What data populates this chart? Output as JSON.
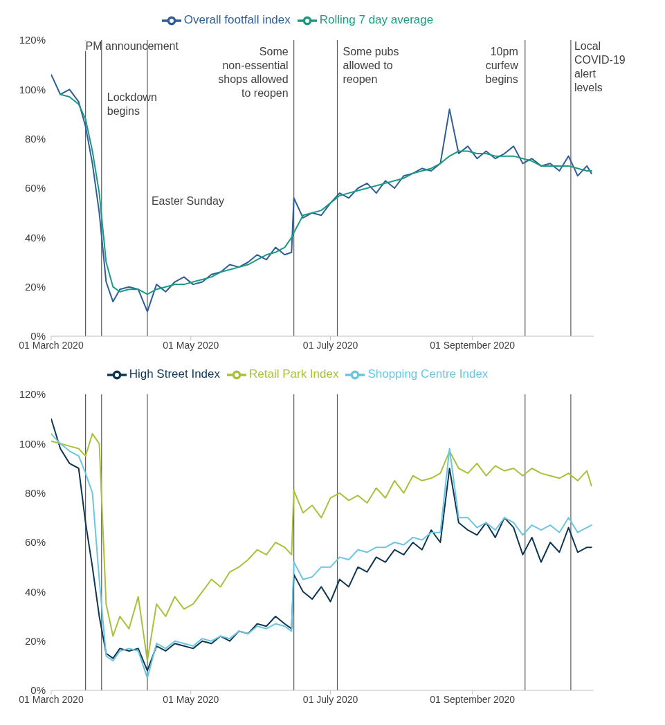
{
  "chart_data": [
    {
      "type": "line",
      "legend": "top",
      "marker": "none",
      "line_style": "solid",
      "x": [
        "2020-03-01",
        "2020-03-05",
        "2020-03-09",
        "2020-03-13",
        "2020-03-16",
        "2020-03-19",
        "2020-03-22",
        "2020-03-25",
        "2020-03-28",
        "2020-03-31",
        "2020-04-04",
        "2020-04-08",
        "2020-04-12",
        "2020-04-16",
        "2020-04-20",
        "2020-04-24",
        "2020-04-28",
        "2020-05-02",
        "2020-05-06",
        "2020-05-10",
        "2020-05-14",
        "2020-05-18",
        "2020-05-22",
        "2020-05-26",
        "2020-05-30",
        "2020-06-03",
        "2020-06-07",
        "2020-06-11",
        "2020-06-14",
        "2020-06-15",
        "2020-06-19",
        "2020-06-23",
        "2020-06-27",
        "2020-07-01",
        "2020-07-05",
        "2020-07-09",
        "2020-07-13",
        "2020-07-17",
        "2020-07-21",
        "2020-07-25",
        "2020-07-29",
        "2020-08-02",
        "2020-08-06",
        "2020-08-10",
        "2020-08-14",
        "2020-08-18",
        "2020-08-22",
        "2020-08-26",
        "2020-08-30",
        "2020-09-03",
        "2020-09-07",
        "2020-09-11",
        "2020-09-15",
        "2020-09-19",
        "2020-09-23",
        "2020-09-27",
        "2020-10-01",
        "2020-10-05",
        "2020-10-09",
        "2020-10-13",
        "2020-10-17",
        "2020-10-21",
        "2020-10-23"
      ],
      "series": [
        {
          "name": "Overall footfall index",
          "color": "#2f5d95",
          "values": [
            106,
            98,
            100,
            95,
            85,
            70,
            50,
            22,
            14,
            19,
            20,
            19,
            10,
            21,
            18,
            22,
            24,
            21,
            22,
            25,
            26,
            29,
            28,
            30,
            33,
            31,
            36,
            33,
            34,
            56,
            48,
            50,
            49,
            54,
            58,
            56,
            60,
            62,
            58,
            63,
            60,
            65,
            66,
            68,
            67,
            70,
            92,
            74,
            77,
            72,
            75,
            72,
            74,
            77,
            70,
            72,
            69,
            70,
            67,
            73,
            65,
            69,
            66
          ]
        },
        {
          "name": "Rolling 7 day average",
          "color": "#1a9a80",
          "values": [
            null,
            98,
            97,
            94,
            88,
            75,
            58,
            30,
            20,
            18,
            19,
            19,
            17,
            19,
            20,
            21,
            21,
            22,
            23,
            24,
            26,
            27,
            28,
            29,
            31,
            33,
            34,
            36,
            40,
            42,
            49,
            50,
            51,
            54,
            57,
            58,
            59,
            60,
            61,
            62,
            63,
            64,
            66,
            67,
            68,
            70,
            73,
            75,
            75,
            74,
            74,
            73,
            73,
            73,
            72,
            71,
            69,
            69,
            69,
            69,
            68,
            67,
            67
          ]
        }
      ],
      "xlim": [
        "2020-03-01",
        "2020-10-24"
      ],
      "xticks": [
        {
          "value": "2020-03-01",
          "label": "01 March 2020"
        },
        {
          "value": "2020-05-01",
          "label": "01 May 2020"
        },
        {
          "value": "2020-07-01",
          "label": "01 July 2020"
        },
        {
          "value": "2020-09-01",
          "label": "01 September 2020"
        }
      ],
      "ylim": [
        0,
        120
      ],
      "yticks": [
        {
          "value": 0,
          "label": "0%"
        },
        {
          "value": 20,
          "label": "20%"
        },
        {
          "value": 40,
          "label": "40%"
        },
        {
          "value": 60,
          "label": "60%"
        },
        {
          "value": 80,
          "label": "80%"
        },
        {
          "value": 100,
          "label": "100%"
        },
        {
          "value": 120,
          "label": "120%"
        }
      ],
      "ref_lines": [
        {
          "axis": "x",
          "value": "2020-03-16",
          "label": "PM announcement",
          "color": "#595959"
        },
        {
          "axis": "x",
          "value": "2020-03-23",
          "label": "Lockdown begins",
          "color": "#595959"
        },
        {
          "axis": "x",
          "value": "2020-04-12",
          "label": "Easter Sunday",
          "color": "#595959"
        },
        {
          "axis": "x",
          "value": "2020-06-15",
          "label": "Some non-essential shops allowed to reopen",
          "color": "#595959"
        },
        {
          "axis": "x",
          "value": "2020-07-04",
          "label": "Some pubs allowed to reopen",
          "color": "#595959"
        },
        {
          "axis": "x",
          "value": "2020-09-24",
          "label": "10pm curfew begins",
          "color": "#595959"
        },
        {
          "axis": "x",
          "value": "2020-10-14",
          "label": "Local COVID-19 alert levels",
          "color": "#595959"
        }
      ]
    },
    {
      "type": "line",
      "legend": "top",
      "marker": "none",
      "line_style": "solid",
      "x": [
        "2020-03-01",
        "2020-03-05",
        "2020-03-09",
        "2020-03-13",
        "2020-03-16",
        "2020-03-19",
        "2020-03-22",
        "2020-03-25",
        "2020-03-28",
        "2020-03-31",
        "2020-04-04",
        "2020-04-08",
        "2020-04-12",
        "2020-04-16",
        "2020-04-20",
        "2020-04-24",
        "2020-04-28",
        "2020-05-02",
        "2020-05-06",
        "2020-05-10",
        "2020-05-14",
        "2020-05-18",
        "2020-05-22",
        "2020-05-26",
        "2020-05-30",
        "2020-06-03",
        "2020-06-07",
        "2020-06-11",
        "2020-06-14",
        "2020-06-15",
        "2020-06-19",
        "2020-06-23",
        "2020-06-27",
        "2020-07-01",
        "2020-07-05",
        "2020-07-09",
        "2020-07-13",
        "2020-07-17",
        "2020-07-21",
        "2020-07-25",
        "2020-07-29",
        "2020-08-02",
        "2020-08-06",
        "2020-08-10",
        "2020-08-14",
        "2020-08-18",
        "2020-08-22",
        "2020-08-26",
        "2020-08-30",
        "2020-09-03",
        "2020-09-07",
        "2020-09-11",
        "2020-09-15",
        "2020-09-19",
        "2020-09-23",
        "2020-09-27",
        "2020-10-01",
        "2020-10-05",
        "2020-10-09",
        "2020-10-13",
        "2020-10-17",
        "2020-10-21",
        "2020-10-23"
      ],
      "series": [
        {
          "name": "High Street Index",
          "color": "#0e3653",
          "values": [
            110,
            98,
            92,
            90,
            68,
            50,
            30,
            15,
            13,
            17,
            16,
            17,
            8,
            18,
            16,
            19,
            18,
            17,
            20,
            19,
            22,
            20,
            24,
            23,
            27,
            26,
            30,
            27,
            25,
            47,
            40,
            37,
            42,
            36,
            45,
            42,
            50,
            48,
            54,
            52,
            57,
            55,
            60,
            57,
            65,
            60,
            90,
            68,
            65,
            63,
            68,
            62,
            70,
            66,
            55,
            62,
            52,
            60,
            56,
            66,
            56,
            58,
            58
          ]
        },
        {
          "name": "Retail Park Index",
          "color": "#a5c23a",
          "values": [
            101,
            100,
            99,
            98,
            95,
            104,
            100,
            35,
            22,
            30,
            25,
            38,
            12,
            35,
            30,
            38,
            33,
            35,
            40,
            45,
            42,
            48,
            50,
            53,
            57,
            55,
            60,
            58,
            55,
            81,
            72,
            75,
            70,
            78,
            80,
            77,
            79,
            76,
            82,
            78,
            85,
            80,
            87,
            85,
            86,
            88,
            97,
            90,
            88,
            92,
            87,
            91,
            89,
            90,
            87,
            90,
            88,
            87,
            86,
            88,
            85,
            89,
            83
          ]
        },
        {
          "name": "Shopping Centre Index",
          "color": "#6cc5e0",
          "values": [
            104,
            100,
            97,
            95,
            88,
            80,
            45,
            14,
            12,
            16,
            17,
            16,
            5,
            19,
            17,
            20,
            19,
            18,
            21,
            20,
            22,
            21,
            24,
            23,
            26,
            25,
            27,
            26,
            24,
            52,
            45,
            46,
            50,
            50,
            54,
            53,
            57,
            56,
            58,
            58,
            60,
            59,
            62,
            61,
            64,
            64,
            98,
            70,
            70,
            66,
            68,
            65,
            70,
            68,
            63,
            67,
            65,
            67,
            64,
            70,
            64,
            66,
            67
          ]
        }
      ],
      "xlim": [
        "2020-03-01",
        "2020-10-24"
      ],
      "xticks": [
        {
          "value": "2020-03-01",
          "label": "01 March 2020"
        },
        {
          "value": "2020-05-01",
          "label": "01 May 2020"
        },
        {
          "value": "2020-07-01",
          "label": "01 July 2020"
        },
        {
          "value": "2020-09-01",
          "label": "01 September 2020"
        }
      ],
      "ylim": [
        0,
        120
      ],
      "yticks": [
        {
          "value": 0,
          "label": "0%"
        },
        {
          "value": 20,
          "label": "20%"
        },
        {
          "value": 40,
          "label": "40%"
        },
        {
          "value": 60,
          "label": "60%"
        },
        {
          "value": 80,
          "label": "80%"
        },
        {
          "value": 100,
          "label": "100%"
        },
        {
          "value": 120,
          "label": "120%"
        }
      ],
      "ref_lines": [
        {
          "axis": "x",
          "value": "2020-03-16",
          "color": "#595959"
        },
        {
          "axis": "x",
          "value": "2020-03-23",
          "color": "#595959"
        },
        {
          "axis": "x",
          "value": "2020-04-12",
          "color": "#595959"
        },
        {
          "axis": "x",
          "value": "2020-06-15",
          "color": "#595959"
        },
        {
          "axis": "x",
          "value": "2020-07-04",
          "color": "#595959"
        },
        {
          "axis": "x",
          "value": "2020-09-24",
          "color": "#595959"
        },
        {
          "axis": "x",
          "value": "2020-10-14",
          "color": "#595959"
        }
      ]
    }
  ]
}
